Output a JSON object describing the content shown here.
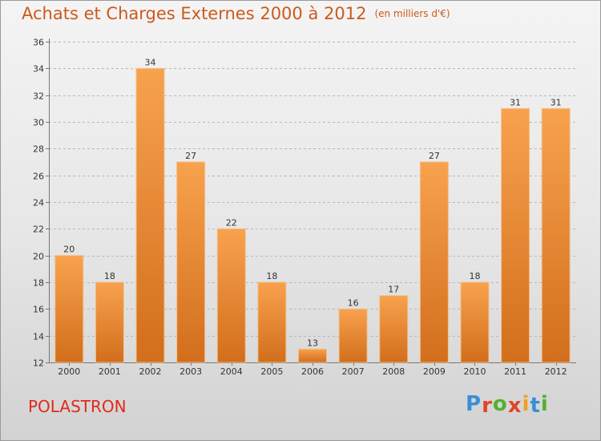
{
  "title": "Achats et Charges Externes 2000 à 2012",
  "subtitle": "(en milliers d'€)",
  "commune": "POLASTRON",
  "logo": {
    "letters": [
      "P",
      "r",
      "o",
      "x",
      "i",
      "t",
      "i"
    ],
    "colors": [
      "#3a8fd6",
      "#e2452a",
      "#55b030",
      "#e2452a",
      "#f0a020",
      "#3a8fd6",
      "#55b030"
    ]
  },
  "colors": {
    "title": "#cc5a1c",
    "commune": "#e02a1c",
    "bar_top": "#f8a24e",
    "bar_bottom": "#d26e1c"
  },
  "chart_data": {
    "type": "bar",
    "categories": [
      "2000",
      "2001",
      "2002",
      "2003",
      "2004",
      "2005",
      "2006",
      "2007",
      "2008",
      "2009",
      "2010",
      "2011",
      "2012"
    ],
    "values": [
      20,
      18,
      34,
      27,
      22,
      18,
      13,
      16,
      17,
      27,
      18,
      31,
      31
    ],
    "data_labels": [
      "20",
      "18",
      "34",
      "27",
      "22",
      "18",
      "13",
      "16",
      "17",
      "27",
      "18",
      "31",
      "31"
    ],
    "yticks": [
      "12",
      "14",
      "16",
      "18",
      "20",
      "22",
      "24",
      "26",
      "28",
      "30",
      "32",
      "34",
      "36"
    ],
    "ylim": [
      12,
      36
    ],
    "grid": "horizontal dashed",
    "legend": "none"
  }
}
